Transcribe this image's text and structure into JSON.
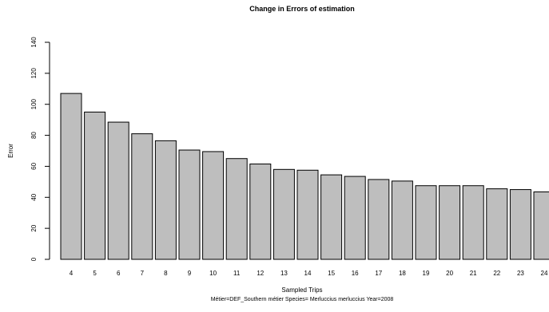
{
  "chart_data": {
    "type": "bar",
    "title": "Change in Errors of estimation",
    "xlabel": "Sampled Trips",
    "subtitle": "Métier=DEF_Southern métier Species= Merluccius merluccius Year=2008",
    "ylabel": "Error",
    "categories": [
      "4",
      "5",
      "6",
      "7",
      "8",
      "9",
      "10",
      "11",
      "12",
      "13",
      "14",
      "15",
      "16",
      "17",
      "18",
      "19",
      "20",
      "21",
      "22",
      "23",
      "24"
    ],
    "values": [
      107,
      95,
      88.5,
      81,
      76.5,
      70.5,
      69.5,
      65,
      61.5,
      58,
      57.5,
      54.5,
      53.5,
      51.5,
      50.5,
      47.5,
      47.5,
      47.5,
      45.5,
      45,
      43.5
    ],
    "ylim": [
      0,
      140
    ],
    "yticks": [
      0,
      20,
      40,
      60,
      80,
      100,
      120,
      140
    ],
    "bar_color": "#bebebe",
    "grid": false,
    "legend": "none"
  }
}
